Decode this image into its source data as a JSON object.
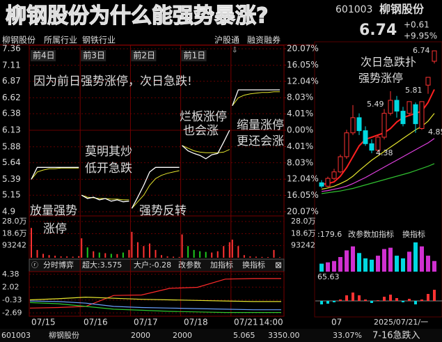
{
  "title": "柳钢股份为什么能强势暴涨?",
  "quote": {
    "code": "601003",
    "name": "柳钢股份",
    "price": "6.74",
    "change": "+0.61",
    "change_pct": "+9.95%"
  },
  "header": {
    "name": "柳钢股份",
    "tabs": [
      "所属行业",
      "钢铁行业"
    ],
    "badges": [
      "沪股通",
      "融资融券"
    ]
  },
  "intraday": {
    "days": [
      "前4日",
      "前3日",
      "前2日",
      "前1日"
    ],
    "ylim": [
      4.9,
      7.36
    ],
    "price_ticks": [
      7.36,
      7.11,
      6.87,
      6.62,
      6.38,
      6.13,
      5.88,
      5.64,
      5.39,
      5.15,
      4.9
    ],
    "pct_lim": [
      -20.07,
      20.07
    ],
    "pct_ticks": [
      {
        "value": 20.07,
        "label": "20.07%"
      },
      {
        "value": 16.05,
        "label": "16.05%"
      },
      {
        "value": 12.04,
        "label": "12.04%"
      },
      {
        "value": 8.03,
        "label": "8.03%"
      },
      {
        "value": 4.01,
        "label": "4.01%"
      },
      {
        "value": 0,
        "label": "0.00%"
      },
      {
        "value": -4.01,
        "label": "4.01%"
      },
      {
        "value": -8.03,
        "label": "8.03%"
      },
      {
        "value": -12.04,
        "label": "12.04%"
      },
      {
        "value": -16.05,
        "label": "16.05%"
      },
      {
        "value": -20.07,
        "label": "20.07%"
      }
    ],
    "days_data": [
      {
        "price": [
          5.39,
          5.57,
          5.57,
          5.57,
          5.57,
          5.57,
          5.57,
          5.57,
          5.57
        ],
        "avg": [
          5.39,
          5.5,
          5.53,
          5.55,
          5.55,
          5.56,
          5.56,
          5.56,
          5.56
        ],
        "volume": [
          230000,
          60000,
          30000,
          20000,
          15000,
          10000,
          10000,
          8000,
          12000
        ]
      },
      {
        "price": [
          5.15,
          5.1,
          5.12,
          5.08,
          5.1,
          5.06,
          5.08,
          5.05,
          5.06
        ],
        "avg": [
          5.15,
          5.12,
          5.11,
          5.1,
          5.1,
          5.09,
          5.09,
          5.08,
          5.08
        ],
        "volume": [
          150000,
          80000,
          50000,
          40000,
          35000,
          30000,
          28000,
          40000,
          60000
        ]
      },
      {
        "price": [
          4.95,
          5.12,
          5.3,
          5.5,
          5.57,
          5.57,
          5.57,
          5.57,
          5.57
        ],
        "avg": [
          4.95,
          5.05,
          5.15,
          5.3,
          5.4,
          5.45,
          5.48,
          5.5,
          5.52
        ],
        "volume": [
          200000,
          120000,
          90000,
          110000,
          60000,
          20000,
          10000,
          8000,
          6000
        ]
      },
      {
        "price": [
          5.9,
          5.82,
          5.78,
          5.75,
          5.7,
          5.76,
          5.78,
          5.95,
          6.13
        ],
        "avg": [
          5.9,
          5.86,
          5.82,
          5.8,
          5.79,
          5.79,
          5.79,
          5.8,
          5.84
        ],
        "volume": [
          180000,
          90000,
          60000,
          50000,
          45000,
          40000,
          50000,
          90000,
          120000
        ]
      },
      {
        "price": [
          6.5,
          6.74,
          6.74,
          6.74,
          6.74,
          6.74,
          6.74,
          6.74,
          6.74
        ],
        "avg": [
          6.5,
          6.62,
          6.66,
          6.68,
          6.69,
          6.7,
          6.7,
          6.71,
          6.71
        ],
        "volume": [
          140000,
          90000,
          20000,
          10000,
          8000,
          6000,
          5000,
          60000,
          4000
        ]
      }
    ],
    "volume_lim": [
      0,
      280000
    ],
    "volume_ticks": [
      {
        "value": 280000,
        "label": "28.0万"
      },
      {
        "value": 186000,
        "label": "18.6万"
      },
      93242
    ],
    "dates": [
      "07/15",
      "07/16",
      "07/17",
      "07/18",
      "07/21",
      "14:00"
    ]
  },
  "annotations": [
    {
      "lines": [
        "因为前日强势涨停，次日急跌!"
      ]
    },
    {
      "lines": [
        "莫明其炒",
        "低开急跌"
      ]
    },
    {
      "lines": [
        "放量强势",
        "涨停"
      ]
    },
    {
      "lines": [
        "强势反转"
      ]
    },
    {
      "lines": [
        "烂板涨停",
        "也会涨"
      ]
    },
    {
      "lines": [
        "缩量涨停",
        "更还会涨"
      ]
    }
  ],
  "indicator": {
    "tabs": [
      "分时博弈",
      "超大:3.575",
      "大户:-0.28",
      "改参数",
      "加指标",
      "换指标"
    ],
    "ylim": [
      -3.29,
      4.86
    ],
    "ticks": [
      4.38,
      2.02,
      -0.33,
      -2.69
    ],
    "series": [
      {
        "color": "#ff2a2a",
        "values": [
          -1.8,
          -1.7,
          -1.5,
          0.5,
          0.6,
          1.8,
          2.0,
          3.5,
          3.6,
          3.6
        ]
      },
      {
        "color": "#e6e62e",
        "values": [
          -0.3,
          -0.1,
          0.2,
          0.0,
          -0.2,
          -0.3,
          -0.4,
          -0.5,
          -0.6,
          -0.6
        ]
      },
      {
        "color": "#6aa0ff",
        "values": [
          -0.5,
          -0.6,
          -0.9,
          -1.5,
          -1.7,
          -1.8,
          -1.9,
          -2.0,
          -2.1,
          -2.1
        ]
      },
      {
        "color": "#2ec82e",
        "values": [
          -0.8,
          -1.0,
          -1.5,
          -2.0,
          -2.2,
          -2.4,
          -2.5,
          -2.6,
          -2.6,
          -2.6
        ]
      }
    ]
  },
  "kline": {
    "caption": [
      "次日急跌扑",
      "强势涨停"
    ],
    "labels": [
      6.74,
      5.81,
      5.49,
      4.38,
      4.85
    ],
    "candles": [
      {
        "open": 3.7,
        "close": 3.62,
        "high": 3.76,
        "low": 3.58
      },
      {
        "open": 3.62,
        "close": 3.8,
        "high": 3.84,
        "low": 3.6
      },
      {
        "open": 3.8,
        "close": 3.95,
        "high": 4.02,
        "low": 3.76
      },
      {
        "open": 3.95,
        "close": 4.3,
        "high": 4.35,
        "low": 3.92
      },
      {
        "open": 4.3,
        "close": 4.85,
        "high": 4.92,
        "low": 4.25
      },
      {
        "open": 4.85,
        "close": 5.2,
        "high": 5.49,
        "low": 4.8
      },
      {
        "open": 5.2,
        "close": 4.9,
        "high": 5.3,
        "low": 4.8
      },
      {
        "open": 4.9,
        "close": 4.6,
        "high": 5.0,
        "low": 4.55
      },
      {
        "open": 4.6,
        "close": 4.45,
        "high": 4.7,
        "low": 4.38
      },
      {
        "open": 4.45,
        "close": 4.75,
        "high": 4.8,
        "low": 4.4
      },
      {
        "open": 4.75,
        "close": 5.3,
        "high": 5.4,
        "low": 4.7
      },
      {
        "open": 5.3,
        "close": 5.6,
        "high": 5.81,
        "low": 5.25
      },
      {
        "open": 5.6,
        "close": 5.35,
        "high": 5.7,
        "low": 5.2
      },
      {
        "open": 5.35,
        "close": 5.06,
        "high": 5.45,
        "low": 5.0
      },
      {
        "open": 5.3,
        "close": 5.57,
        "high": 5.57,
        "low": 5.25
      },
      {
        "open": 5.5,
        "close": 5.06,
        "high": 5.55,
        "low": 4.85
      },
      {
        "open": 4.95,
        "close": 5.57,
        "high": 5.57,
        "low": 4.92
      },
      {
        "open": 5.95,
        "close": 6.13,
        "high": 6.13,
        "low": 5.75
      },
      {
        "open": 6.5,
        "close": 6.74,
        "high": 6.74,
        "low": 6.45
      }
    ],
    "ma": [
      {
        "color": "#ff2020",
        "values": [
          3.66,
          3.68,
          3.72,
          3.85,
          4.05,
          4.3,
          4.55,
          4.7,
          4.75,
          4.8,
          4.85,
          4.95,
          5.1,
          5.2,
          5.25,
          5.3,
          5.35,
          5.55,
          5.85
        ]
      },
      {
        "color": "#e6e62e",
        "values": [
          3.55,
          3.58,
          3.62,
          3.68,
          3.75,
          3.85,
          3.98,
          4.1,
          4.22,
          4.32,
          4.42,
          4.52,
          4.62,
          4.72,
          4.82,
          4.92,
          5.0,
          5.12,
          5.3
        ]
      },
      {
        "color": "#e040e0",
        "values": [
          3.5,
          3.52,
          3.55,
          3.58,
          3.62,
          3.68,
          3.75,
          3.82,
          3.9,
          3.98,
          4.06,
          4.14,
          4.22,
          4.3,
          4.38,
          4.46,
          4.54,
          4.62,
          4.72
        ]
      },
      {
        "color": "#30c030",
        "values": [
          3.45,
          3.47,
          3.49,
          3.51,
          3.54,
          3.57,
          3.61,
          3.65,
          3.69,
          3.73,
          3.77,
          3.81,
          3.85,
          3.89,
          3.93,
          3.98,
          4.03,
          4.08,
          4.14
        ]
      }
    ],
    "volume_tabs": [
      ":179.6",
      "改参数",
      "加指标",
      "换指标"
    ],
    "volume": [
      30,
      35,
      40,
      55,
      80,
      95,
      70,
      50,
      45,
      60,
      85,
      90,
      60,
      50,
      75,
      110,
      95,
      60,
      40
    ],
    "macd_label": "65.63",
    "macd": [
      -0.05,
      -0.04,
      -0.02,
      0.02,
      0.08,
      0.12,
      0.08,
      0.02,
      -0.03,
      0.01,
      0.06,
      0.09,
      0.04,
      -0.02,
      0.03,
      -0.05,
      0.02,
      0.1,
      0.16
    ],
    "x_label": "07",
    "date": "2025/07/21/一"
  },
  "status": [
    "601003",
    "柳钢股份",
    "2000",
    "2000",
    "5.065",
    "3350.00",
    "33.07%",
    "7-16急跌入"
  ]
}
